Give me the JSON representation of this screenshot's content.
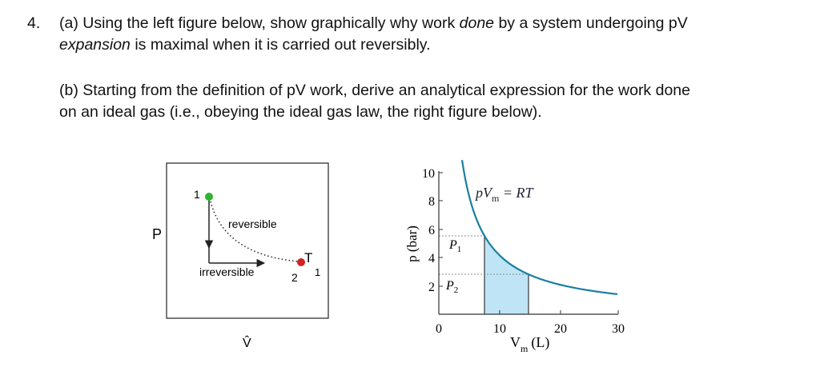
{
  "question": {
    "number": "4.",
    "part_a": [
      "(a) Using the left figure below, show graphically why work ",
      "done",
      " by a system undergoing pV",
      "expansion",
      " is maximal when it is carried out reversibly."
    ],
    "part_b": [
      "(b) Starting from the definition of pV work, derive an analytical expression for the work done",
      "on an ideal gas (i.e., obeying the ideal gas law, the right figure below)."
    ]
  },
  "left_figure": {
    "y_label": "P",
    "x_label": "V̂",
    "point_1": "1",
    "point_2": "2",
    "reversible": "reversible",
    "irreversible": "irreversible",
    "temperature": "T",
    "temperature_sub": "1"
  },
  "right_figure": {
    "y_label": "p (bar)",
    "x_label": "V",
    "x_label_sub": "m",
    "x_label_unit": "(L)",
    "curve_label": "pV",
    "curve_label_sub": "m",
    "curve_label_rest": " = RT",
    "p1": "P",
    "p1_sub": "1",
    "p2": "P",
    "p2_sub": "2",
    "yticks": [
      "10",
      "8",
      "6",
      "4",
      "2"
    ],
    "xticks": [
      "0",
      "10",
      "20",
      "30"
    ]
  }
}
